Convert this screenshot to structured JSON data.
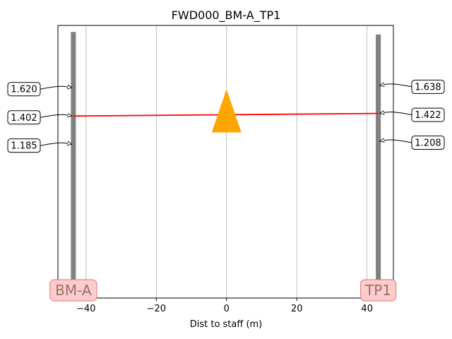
{
  "chart_data": {
    "type": "line",
    "title": "FWD000_BM-A_TP1",
    "xlabel": "Dist to staff (m)",
    "ylabel": "",
    "xlim": [
      -48,
      47.5
    ],
    "ylim": [
      0,
      2.1
    ],
    "grid": "x-only",
    "xticks": [
      {
        "value": -40,
        "label": "−40"
      },
      {
        "value": -20,
        "label": "−20"
      },
      {
        "value": 0,
        "label": "0"
      },
      {
        "value": 20,
        "label": "20"
      },
      {
        "value": 40,
        "label": "40"
      }
    ],
    "staffs": [
      {
        "name": "BM-A",
        "x": -43.6,
        "top": 2.05,
        "readings": [
          {
            "value": 1.62,
            "label": "1.620"
          },
          {
            "value": 1.402,
            "label": "1.402"
          },
          {
            "value": 1.185,
            "label": "1.185"
          }
        ]
      },
      {
        "name": "TP1",
        "x": 43.2,
        "top": 2.03,
        "readings": [
          {
            "value": 1.638,
            "label": "1.638"
          },
          {
            "value": 1.422,
            "label": "1.422"
          },
          {
            "value": 1.208,
            "label": "1.208"
          }
        ]
      }
    ],
    "sight_line": {
      "x": [
        -43.6,
        43.2
      ],
      "y": [
        1.402,
        1.422
      ],
      "color": "#ff0000"
    },
    "instrument": {
      "x": 0,
      "y": 1.39,
      "color": "#ffa500",
      "shape": "triangle"
    },
    "colors": {
      "staff": "#808080",
      "station_box_fill": "#ffcccc",
      "station_box_edge": "#f08080",
      "station_text": "#9a6e6e"
    }
  }
}
